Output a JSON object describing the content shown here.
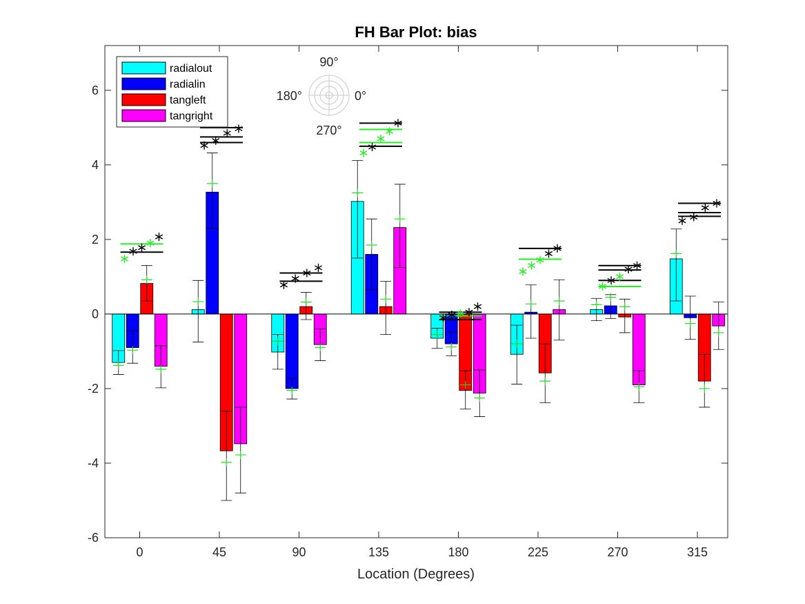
{
  "chart_data": {
    "type": "bar",
    "title": "FH Bar Plot: bias",
    "xlabel": "Location (Degrees)",
    "ylabel": "",
    "ylim": [
      -6,
      7.2
    ],
    "yticks": [
      -6,
      -4,
      -2,
      0,
      2,
      4,
      6
    ],
    "categories": [
      "0",
      "45",
      "90",
      "135",
      "180",
      "225",
      "270",
      "315"
    ],
    "legend_position": "top-left",
    "grid": false,
    "series": [
      {
        "name": "radialout",
        "color": "#00ffff",
        "values": [
          -1.3,
          0.12,
          -1.02,
          3.02,
          -0.65,
          -1.08,
          0.12,
          1.48
        ],
        "error_low": [
          -1.62,
          -0.75,
          -1.48,
          1.5,
          -0.92,
          -1.88,
          -0.18,
          0.35
        ],
        "error_high": [
          -0.98,
          0.9,
          -0.55,
          4.12,
          -0.38,
          -0.3,
          0.42,
          2.28
        ],
        "green_marks": [
          -1.38,
          0.33,
          -0.73,
          3.25,
          -0.55,
          -0.8,
          0.25,
          1.62
        ]
      },
      {
        "name": "radialin",
        "color": "#0000ff",
        "values": [
          -0.9,
          3.27,
          -2.0,
          1.6,
          -0.8,
          0.05,
          0.22,
          -0.1
        ],
        "error_low": [
          -1.32,
          2.3,
          -2.28,
          0.65,
          -1.12,
          -0.65,
          -0.12,
          -0.68
        ],
        "error_high": [
          -0.45,
          4.32,
          -1.72,
          2.55,
          -0.48,
          0.78,
          0.52,
          0.48
        ],
        "green_marks": [
          -0.97,
          3.5,
          -2.05,
          1.85,
          -0.88,
          0.27,
          0.45,
          -0.25
        ]
      },
      {
        "name": "tangleft",
        "color": "#ff0000",
        "values": [
          0.82,
          -3.67,
          0.2,
          0.2,
          -2.05,
          -1.58,
          -0.08,
          -1.8
        ],
        "error_low": [
          0.35,
          -5.0,
          -0.15,
          -0.55,
          -2.55,
          -2.38,
          -0.5,
          -2.5
        ],
        "error_high": [
          1.3,
          -2.6,
          0.58,
          0.88,
          -1.52,
          -0.8,
          0.4,
          -1.08
        ],
        "green_marks": [
          0.92,
          -3.98,
          0.32,
          0.4,
          -1.9,
          -1.8,
          0.2,
          -2.0
        ]
      },
      {
        "name": "tangright",
        "color": "#ff00ff",
        "values": [
          -1.4,
          -3.48,
          -0.82,
          2.32,
          -2.12,
          0.12,
          -1.9,
          -0.32
        ],
        "error_low": [
          -1.98,
          -4.8,
          -1.25,
          1.25,
          -2.75,
          -0.7,
          -2.38,
          -0.95
        ],
        "error_high": [
          -0.85,
          -2.5,
          -0.4,
          3.48,
          -1.5,
          0.92,
          -1.52,
          0.32
        ],
        "green_marks": [
          -1.48,
          -3.78,
          -0.9,
          2.55,
          -2.25,
          0.35,
          -1.95,
          -0.5
        ]
      }
    ],
    "significance": [
      {
        "category": "0",
        "black_stars": [
          1.68,
          1.78,
          2.07
        ],
        "green_stars": [
          1.48,
          1.9
        ],
        "black_lines": [
          1.66
        ],
        "green_lines": [
          1.88
        ]
      },
      {
        "category": "45",
        "black_stars": [
          4.52,
          4.65,
          4.85,
          4.97
        ],
        "green_stars": [],
        "black_lines": [
          4.6,
          4.75,
          5.0
        ],
        "green_lines": []
      },
      {
        "category": "90",
        "black_stars": [
          0.78,
          0.95,
          1.1,
          1.24
        ],
        "green_stars": [],
        "black_lines": [
          0.88,
          1.1
        ],
        "green_lines": []
      },
      {
        "category": "135",
        "black_stars": [
          4.48,
          5.12
        ],
        "green_stars": [
          4.32,
          4.7,
          4.9
        ],
        "black_lines": [
          4.5,
          5.12
        ],
        "green_lines": [
          4.6,
          4.95
        ]
      },
      {
        "category": "180",
        "black_stars": [
          -0.1,
          -0.02,
          0.05,
          0.2
        ],
        "green_stars": [
          0.02
        ],
        "black_lines": [
          -0.15,
          0.05
        ],
        "green_lines": [
          -0.05
        ]
      },
      {
        "category": "225",
        "black_stars": [
          1.62,
          1.76
        ],
        "green_stars": [
          1.14,
          1.3,
          1.45
        ],
        "black_lines": [
          1.76
        ],
        "green_lines": [
          1.47
        ]
      },
      {
        "category": "270",
        "black_stars": [
          0.9,
          1.2,
          1.3
        ],
        "green_stars": [
          0.74,
          1.0
        ],
        "black_lines": [
          0.9,
          1.18,
          1.3
        ],
        "green_lines": [
          0.74
        ]
      },
      {
        "category": "315",
        "black_stars": [
          2.5,
          2.6,
          2.85,
          2.97
        ],
        "green_stars": [],
        "black_lines": [
          2.62,
          2.72,
          2.97
        ],
        "green_lines": []
      }
    ],
    "compass": {
      "labels": [
        "90°",
        "180°",
        "0°",
        "270°"
      ]
    }
  }
}
